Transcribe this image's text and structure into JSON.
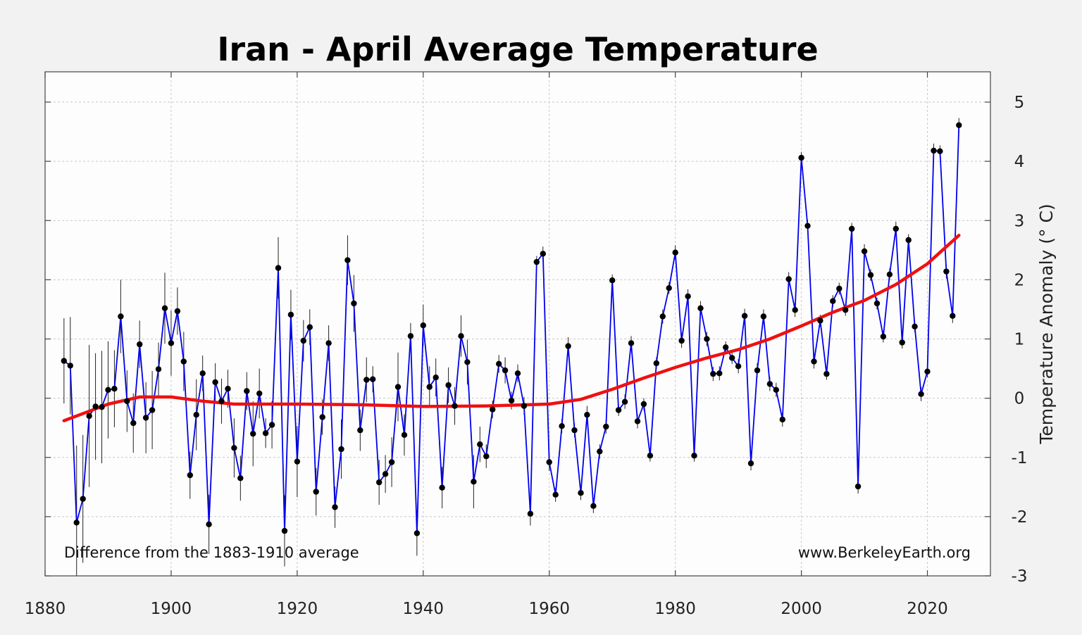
{
  "chart_data": {
    "type": "line",
    "title": "Iran - April Average Temperature",
    "ylabel": "Temperature Anomaly (° C)",
    "xlabel": "",
    "xlim": [
      1880,
      2030
    ],
    "ylim": [
      -3,
      5.5
    ],
    "x_ticks": [
      1880,
      1900,
      1920,
      1940,
      1960,
      1980,
      2000,
      2020
    ],
    "y_ticks": [
      -3,
      -2,
      -1,
      0,
      1,
      2,
      3,
      4,
      5
    ],
    "grid": true,
    "annotations": {
      "left": "Difference from the 1883-1910 average",
      "right": "www.BerkeleyEarth.org"
    },
    "colors": {
      "series": "#0000ee",
      "points": "#000000",
      "smooth": "#ee1111",
      "error_bars": "#222222",
      "grid": "#c8c8c8"
    },
    "series": [
      {
        "years": [
          1883,
          1884,
          1885,
          1886,
          1887,
          1888,
          1889,
          1890,
          1891,
          1892,
          1893,
          1894,
          1895,
          1896,
          1897,
          1898,
          1899,
          1900,
          1901,
          1902,
          1903,
          1904,
          1905,
          1906,
          1907,
          1908,
          1909,
          1910,
          1911,
          1912,
          1913,
          1914,
          1915,
          1916,
          1917,
          1918,
          1919,
          1920,
          1921,
          1922,
          1923,
          1924,
          1925,
          1926,
          1927,
          1928,
          1929,
          1930,
          1931,
          1932,
          1933,
          1934,
          1935,
          1936,
          1937,
          1938,
          1939,
          1940,
          1941,
          1942,
          1943,
          1944,
          1945,
          1946,
          1947,
          1948,
          1949,
          1950,
          1951,
          1952,
          1953,
          1954,
          1955,
          1956,
          1957,
          1958,
          1959,
          1960,
          1961,
          1962,
          1963,
          1964,
          1965,
          1966,
          1967,
          1968,
          1969,
          1970,
          1971,
          1972,
          1973,
          1974,
          1975,
          1976,
          1977,
          1978,
          1979,
          1980,
          1981,
          1982,
          1983,
          1984,
          1985,
          1986,
          1987,
          1988,
          1989,
          1990,
          1991,
          1992,
          1993,
          1994,
          1995,
          1996,
          1997,
          1998,
          1999,
          2000,
          2001,
          2002,
          2003,
          2004,
          2005,
          2006,
          2007,
          2008,
          2009,
          2010,
          2011,
          2012,
          2013,
          2014,
          2015,
          2016,
          2017,
          2018,
          2019,
          2020,
          2021,
          2022,
          2023,
          2024,
          2025
        ],
        "values": [
          0.63,
          0.55,
          -2.1,
          -1.7,
          -0.3,
          -0.14,
          -0.15,
          0.14,
          0.16,
          1.38,
          -0.05,
          -0.42,
          0.91,
          -0.33,
          -0.2,
          0.49,
          1.52,
          0.93,
          1.47,
          0.62,
          -1.3,
          -0.28,
          0.42,
          -2.13,
          0.27,
          -0.05,
          0.16,
          -0.84,
          -1.35,
          0.12,
          -0.6,
          0.08,
          -0.59,
          -0.45,
          2.2,
          -2.24,
          1.41,
          -1.07,
          0.97,
          1.2,
          -1.58,
          -0.32,
          0.93,
          -1.84,
          -0.86,
          2.33,
          1.6,
          -0.54,
          0.31,
          0.32,
          -1.42,
          -1.28,
          -1.08,
          0.19,
          -0.62,
          1.05,
          -2.28,
          1.23,
          0.19,
          0.35,
          -1.51,
          0.22,
          -0.13,
          1.05,
          0.61,
          -1.41,
          -0.78,
          -0.98,
          -0.19,
          0.58,
          0.47,
          -0.04,
          0.42,
          -0.13,
          -1.95,
          2.3,
          2.44,
          -1.08,
          -1.63,
          -0.47,
          0.88,
          -0.54,
          -1.6,
          -0.28,
          -1.82,
          -0.9,
          -0.48,
          1.99,
          -0.2,
          -0.06,
          0.93,
          -0.39,
          -0.1,
          -0.97,
          0.59,
          1.38,
          1.86,
          2.46,
          0.97,
          1.72,
          -0.97,
          1.52,
          1.0,
          0.41,
          0.42,
          0.86,
          0.68,
          0.54,
          1.39,
          -1.1,
          0.47,
          1.38,
          0.24,
          0.14,
          -0.36,
          2.01,
          1.49,
          4.06,
          2.91,
          0.62,
          1.31,
          0.41,
          1.64,
          1.85,
          1.49,
          2.86,
          -1.49,
          2.48,
          2.08,
          1.6,
          1.04,
          2.09,
          2.86,
          0.94,
          2.67,
          1.21,
          0.07,
          0.45,
          4.18,
          4.17,
          2.14,
          1.39,
          4.61
        ],
        "uncertainty": [
          0.72,
          0.82,
          1.3,
          1.08,
          1.2,
          0.9,
          0.95,
          0.82,
          0.65,
          0.62,
          0.52,
          0.5,
          0.4,
          0.6,
          0.66,
          0.45,
          0.6,
          0.55,
          0.4,
          0.5,
          0.4,
          0.6,
          0.3,
          0.5,
          0.32,
          0.38,
          0.32,
          0.5,
          0.38,
          0.32,
          0.55,
          0.42,
          0.25,
          0.4,
          0.52,
          0.6,
          0.42,
          0.6,
          0.35,
          0.3,
          0.4,
          0.3,
          0.3,
          0.35,
          0.5,
          0.42,
          0.48,
          0.35,
          0.38,
          0.22,
          0.38,
          0.32,
          0.42,
          0.58,
          0.35,
          0.22,
          0.38,
          0.35,
          0.35,
          0.32,
          0.35,
          0.3,
          0.32,
          0.35,
          0.38,
          0.45,
          0.3,
          0.2,
          0.15,
          0.15,
          0.22,
          0.15,
          0.15,
          0.15,
          0.2,
          0.1,
          0.12,
          0.15,
          0.12,
          0.12,
          0.15,
          0.12,
          0.12,
          0.15,
          0.12,
          0.12,
          0.12,
          0.1,
          0.1,
          0.12,
          0.12,
          0.12,
          0.1,
          0.1,
          0.1,
          0.12,
          0.1,
          0.12,
          0.12,
          0.12,
          0.1,
          0.12,
          0.12,
          0.12,
          0.12,
          0.1,
          0.1,
          0.12,
          0.12,
          0.12,
          0.12,
          0.12,
          0.12,
          0.12,
          0.12,
          0.12,
          0.12,
          0.1,
          0.1,
          0.12,
          0.1,
          0.1,
          0.1,
          0.1,
          0.1,
          0.1,
          0.12,
          0.12,
          0.1,
          0.1,
          0.1,
          0.1,
          0.12,
          0.1,
          0.1,
          0.1,
          0.12,
          0.1,
          0.12,
          0.1,
          0.12,
          0.12,
          0.12
        ]
      },
      {
        "years": [
          1883,
          1890,
          1895,
          1900,
          1905,
          1910,
          1920,
          1930,
          1940,
          1950,
          1960,
          1965,
          1970,
          1975,
          1980,
          1985,
          1990,
          1995,
          2000,
          2005,
          2010,
          2015,
          2020,
          2025
        ],
        "values": [
          -0.38,
          -0.1,
          0.02,
          0.02,
          -0.05,
          -0.1,
          -0.1,
          -0.11,
          -0.14,
          -0.13,
          -0.1,
          -0.02,
          0.15,
          0.34,
          0.52,
          0.68,
          0.82,
          1.0,
          1.22,
          1.45,
          1.65,
          1.92,
          2.27,
          2.75
        ]
      }
    ]
  }
}
